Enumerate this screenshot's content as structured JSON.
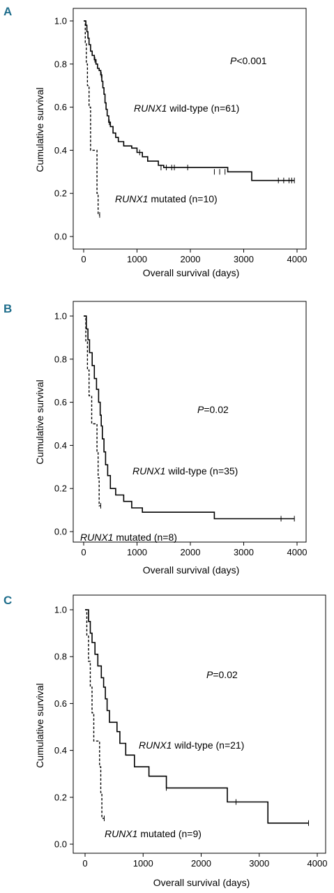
{
  "colors": {
    "panel_letter": "#1f6e8c",
    "line": "#000000"
  },
  "chart_data": [
    {
      "type": "line",
      "panel_label": "A",
      "xlabel": "Overall survival (days)",
      "ylabel": "Cumulative survival",
      "xlim": [
        0,
        4000
      ],
      "ylim": [
        0.0,
        1.0
      ],
      "xticks": [
        0,
        1000,
        2000,
        3000,
        4000
      ],
      "yticks": [
        0.0,
        0.2,
        0.4,
        0.6,
        0.8,
        1.0
      ],
      "pvalue": {
        "italic": "P",
        "rest": "<0.001"
      },
      "series": [
        {
          "name_italic": "RUNX1",
          "name_rest": " wild-type (n=61)",
          "style": "solid",
          "steps": [
            [
              0,
              1.0
            ],
            [
              40,
              0.98
            ],
            [
              60,
              0.95
            ],
            [
              80,
              0.92
            ],
            [
              100,
              0.89
            ],
            [
              130,
              0.86
            ],
            [
              160,
              0.84
            ],
            [
              200,
              0.82
            ],
            [
              230,
              0.8
            ],
            [
              260,
              0.78
            ],
            [
              290,
              0.77
            ],
            [
              320,
              0.75
            ],
            [
              340,
              0.72
            ],
            [
              360,
              0.69
            ],
            [
              380,
              0.66
            ],
            [
              400,
              0.62
            ],
            [
              420,
              0.59
            ],
            [
              440,
              0.56
            ],
            [
              470,
              0.53
            ],
            [
              500,
              0.51
            ],
            [
              550,
              0.48
            ],
            [
              600,
              0.46
            ],
            [
              650,
              0.44
            ],
            [
              750,
              0.42
            ],
            [
              900,
              0.41
            ],
            [
              1000,
              0.39
            ],
            [
              1100,
              0.37
            ],
            [
              1200,
              0.35
            ],
            [
              1400,
              0.33
            ],
            [
              1500,
              0.32
            ],
            [
              2700,
              0.3
            ],
            [
              3150,
              0.26
            ],
            [
              3950,
              0.26
            ]
          ],
          "censored": [
            [
              210,
              0.82
            ],
            [
              330,
              0.75
            ],
            [
              480,
              0.53
            ],
            [
              1050,
              0.39
            ],
            [
              1200,
              0.36
            ],
            [
              1450,
              0.32
            ],
            [
              1550,
              0.32
            ],
            [
              1650,
              0.32
            ],
            [
              1700,
              0.32
            ],
            [
              1950,
              0.32
            ],
            [
              2450,
              0.3
            ],
            [
              2550,
              0.3
            ],
            [
              2650,
              0.3
            ],
            [
              3650,
              0.26
            ],
            [
              3750,
              0.26
            ],
            [
              3850,
              0.26
            ],
            [
              3900,
              0.26
            ],
            [
              3950,
              0.26
            ]
          ]
        },
        {
          "name_italic": "RUNX1",
          "name_rest": " mutated (n=10)",
          "style": "dashed",
          "steps": [
            [
              0,
              1.0
            ],
            [
              30,
              0.9
            ],
            [
              50,
              0.8
            ],
            [
              70,
              0.7
            ],
            [
              100,
              0.6
            ],
            [
              130,
              0.4
            ],
            [
              250,
              0.2
            ],
            [
              270,
              0.1
            ],
            [
              300,
              0.1
            ]
          ],
          "censored": [
            [
              300,
              0.1
            ]
          ]
        }
      ]
    },
    {
      "type": "line",
      "panel_label": "B",
      "xlabel": "Overall survival (days)",
      "ylabel": "Cumulative survival",
      "xlim": [
        0,
        4000
      ],
      "ylim": [
        0.0,
        1.0
      ],
      "xticks": [
        0,
        1000,
        2000,
        3000,
        4000
      ],
      "yticks": [
        0.0,
        0.2,
        0.4,
        0.6,
        0.8,
        1.0
      ],
      "pvalue": {
        "italic": "P",
        "rest": "=0.02"
      },
      "series": [
        {
          "name_italic": "RUNX1",
          "name_rest": " wild-type (n=35)",
          "style": "solid",
          "steps": [
            [
              0,
              1.0
            ],
            [
              50,
              0.94
            ],
            [
              80,
              0.89
            ],
            [
              110,
              0.83
            ],
            [
              160,
              0.77
            ],
            [
              200,
              0.71
            ],
            [
              240,
              0.66
            ],
            [
              280,
              0.6
            ],
            [
              310,
              0.54
            ],
            [
              330,
              0.49
            ],
            [
              350,
              0.43
            ],
            [
              380,
              0.37
            ],
            [
              410,
              0.31
            ],
            [
              450,
              0.26
            ],
            [
              500,
              0.2
            ],
            [
              600,
              0.17
            ],
            [
              750,
              0.14
            ],
            [
              900,
              0.11
            ],
            [
              1100,
              0.09
            ],
            [
              2450,
              0.06
            ],
            [
              3950,
              0.06
            ]
          ],
          "censored": [
            [
              3700,
              0.06
            ],
            [
              3950,
              0.06
            ]
          ]
        },
        {
          "name_italic": "RUNX1",
          "name_rest": " mutated (n=8)",
          "style": "dashed",
          "steps": [
            [
              0,
              1.0
            ],
            [
              40,
              0.88
            ],
            [
              70,
              0.75
            ],
            [
              100,
              0.63
            ],
            [
              150,
              0.5
            ],
            [
              250,
              0.37
            ],
            [
              270,
              0.25
            ],
            [
              290,
              0.12
            ],
            [
              320,
              0.12
            ]
          ],
          "censored": [
            [
              320,
              0.12
            ]
          ]
        }
      ]
    },
    {
      "type": "line",
      "panel_label": "C",
      "xlabel": "Overall survival (days)",
      "ylabel": "Cumulative survival",
      "xlim": [
        0,
        4000
      ],
      "ylim": [
        0.0,
        1.0
      ],
      "xticks": [
        0,
        1000,
        2000,
        3000,
        4000
      ],
      "yticks": [
        0.0,
        0.2,
        0.4,
        0.6,
        0.8,
        1.0
      ],
      "pvalue": {
        "italic": "P",
        "rest": "=0.02"
      },
      "series": [
        {
          "name_italic": "RUNX1",
          "name_rest": " wild-type (n=21)",
          "style": "solid",
          "steps": [
            [
              0,
              1.0
            ],
            [
              60,
              0.95
            ],
            [
              90,
              0.9
            ],
            [
              120,
              0.86
            ],
            [
              170,
              0.81
            ],
            [
              220,
              0.76
            ],
            [
              280,
              0.71
            ],
            [
              320,
              0.67
            ],
            [
              350,
              0.62
            ],
            [
              380,
              0.57
            ],
            [
              420,
              0.52
            ],
            [
              550,
              0.48
            ],
            [
              600,
              0.43
            ],
            [
              700,
              0.38
            ],
            [
              850,
              0.33
            ],
            [
              1100,
              0.29
            ],
            [
              1400,
              0.24
            ],
            [
              2450,
              0.18
            ],
            [
              3150,
              0.09
            ],
            [
              3850,
              0.09
            ]
          ],
          "censored": [
            [
              1400,
              0.24
            ],
            [
              2600,
              0.18
            ],
            [
              3850,
              0.09
            ]
          ]
        },
        {
          "name_italic": "RUNX1",
          "name_rest": " mutated (n=9)",
          "style": "dashed",
          "steps": [
            [
              0,
              1.0
            ],
            [
              30,
              0.89
            ],
            [
              60,
              0.78
            ],
            [
              90,
              0.67
            ],
            [
              120,
              0.56
            ],
            [
              150,
              0.44
            ],
            [
              250,
              0.33
            ],
            [
              270,
              0.22
            ],
            [
              290,
              0.11
            ],
            [
              330,
              0.11
            ]
          ],
          "censored": [
            [
              330,
              0.11
            ]
          ]
        }
      ]
    }
  ]
}
